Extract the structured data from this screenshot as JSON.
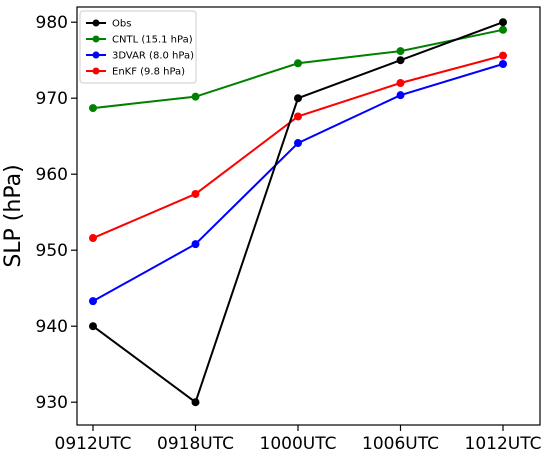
{
  "chart_data": {
    "type": "line",
    "ylabel": "SLP (hPa)",
    "xlabel": "",
    "categories": [
      "0912UTC",
      "0918UTC",
      "1000UTC",
      "1006UTC",
      "1012UTC"
    ],
    "ylim": [
      927,
      982
    ],
    "yticks": [
      930,
      940,
      950,
      960,
      970,
      980
    ],
    "grid": false,
    "legend_position": "top-left",
    "series": [
      {
        "name": "Obs",
        "color": "#000000",
        "values": [
          940,
          930,
          970,
          975,
          980
        ]
      },
      {
        "name": "CNTL (15.1 hPa)",
        "color": "#008000",
        "values": [
          968.7,
          970.2,
          974.6,
          976.2,
          979
        ]
      },
      {
        "name": "3DVAR (8.0 hPa)",
        "color": "#0000ff",
        "values": [
          943.3,
          950.8,
          964.1,
          970.4,
          974.5
        ]
      },
      {
        "name": "EnKF (9.8 hPa)",
        "color": "#ff0000",
        "values": [
          951.6,
          957.4,
          967.6,
          972,
          975.6
        ]
      }
    ]
  }
}
